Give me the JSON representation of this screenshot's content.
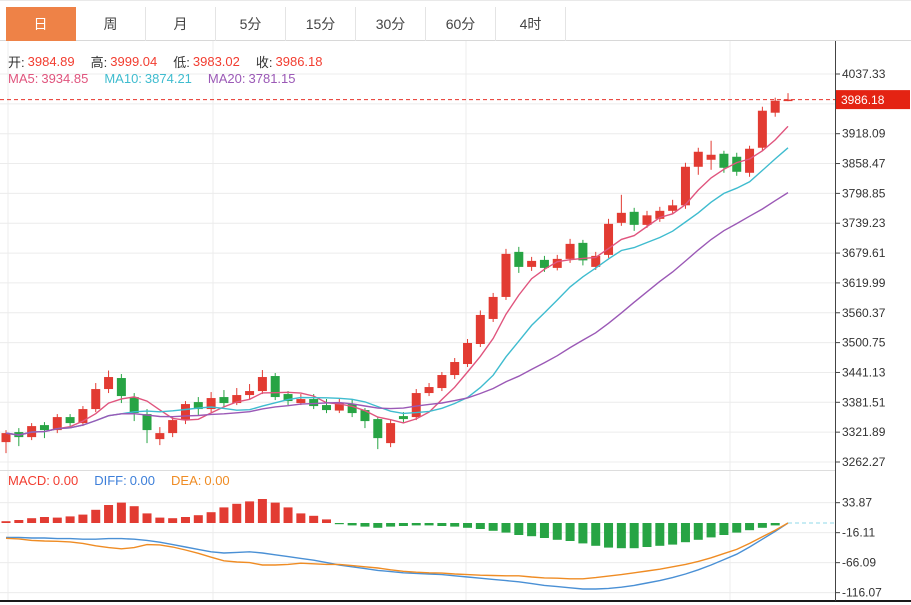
{
  "tabs": [
    {
      "label": "日",
      "active": true
    },
    {
      "label": "周",
      "active": false
    },
    {
      "label": "月",
      "active": false
    },
    {
      "label": "5分",
      "active": false
    },
    {
      "label": "15分",
      "active": false
    },
    {
      "label": "30分",
      "active": false
    },
    {
      "label": "60分",
      "active": false
    },
    {
      "label": "4时",
      "active": false
    }
  ],
  "ohlc_bar": {
    "open_label": "开:",
    "open_value": "3984.89",
    "high_label": "高:",
    "high_value": "3999.04",
    "low_label": "低:",
    "low_value": "3983.02",
    "close_label": "收:",
    "close_value": "3986.18"
  },
  "ma_bar": {
    "ma5_label": "MA5:",
    "ma5_value": "3934.85",
    "ma10_label": "MA10:",
    "ma10_value": "3874.21",
    "ma20_label": "MA20:",
    "ma20_value": "3781.15"
  },
  "macd_bar": {
    "macd_label": "MACD:",
    "macd_value": "0.00",
    "diff_label": "DIFF:",
    "diff_value": "0.00",
    "dea_label": "DEA:",
    "dea_value": "0.00"
  },
  "colors": {
    "accent_tab": "#ee8247",
    "up": "#e23b32",
    "down": "#27a444",
    "ma5": "#e0557e",
    "ma10": "#3fbccf",
    "ma20": "#9b59b6",
    "diff_line": "#4a90d5",
    "dea_line": "#ef8c24",
    "price_line": "#e8332a",
    "badge_bg": "#e42313",
    "grid": "#ececec",
    "axis_line": "#444",
    "axis_text": "#333",
    "zero_dash": "#8fd8e8"
  },
  "chart_data": [
    {
      "type": "candlestick",
      "title": "",
      "xlabel": "",
      "ylabel": "price",
      "ylim": [
        3246,
        4054
      ],
      "grid": true,
      "legend_position": "top-left",
      "y_ticks": [
        4037.33,
        3918.09,
        3858.47,
        3798.85,
        3739.23,
        3679.61,
        3619.99,
        3560.37,
        3500.75,
        3441.13,
        3381.51,
        3321.89,
        3262.27
      ],
      "hidden_grid_tick": 3977.71,
      "current_price": 3986.18,
      "current_price_label": "3986.18",
      "overlays": [
        {
          "name": "MA5",
          "period": 5,
          "color": "#e0557e"
        },
        {
          "name": "MA10",
          "period": 10,
          "color": "#3fbccf"
        },
        {
          "name": "MA20",
          "period": 20,
          "color": "#9b59b6"
        }
      ],
      "ohlc": [
        [
          3302,
          3326,
          3280,
          3320
        ],
        [
          3322,
          3330,
          3294,
          3312
        ],
        [
          3312,
          3340,
          3306,
          3334
        ],
        [
          3336,
          3342,
          3310,
          3326
        ],
        [
          3326,
          3358,
          3320,
          3352
        ],
        [
          3352,
          3358,
          3332,
          3340
        ],
        [
          3340,
          3374,
          3334,
          3368
        ],
        [
          3368,
          3420,
          3362,
          3408
        ],
        [
          3408,
          3445,
          3400,
          3432
        ],
        [
          3430,
          3438,
          3380,
          3394
        ],
        [
          3392,
          3400,
          3344,
          3360
        ],
        [
          3358,
          3368,
          3300,
          3326
        ],
        [
          3308,
          3332,
          3296,
          3320
        ],
        [
          3320,
          3352,
          3312,
          3346
        ],
        [
          3346,
          3384,
          3338,
          3378
        ],
        [
          3382,
          3392,
          3356,
          3368
        ],
        [
          3368,
          3402,
          3362,
          3390
        ],
        [
          3392,
          3406,
          3372,
          3380
        ],
        [
          3380,
          3410,
          3376,
          3396
        ],
        [
          3396,
          3418,
          3388,
          3404
        ],
        [
          3404,
          3446,
          3398,
          3432
        ],
        [
          3434,
          3440,
          3386,
          3392
        ],
        [
          3398,
          3404,
          3376,
          3384
        ],
        [
          3380,
          3398,
          3376,
          3388
        ],
        [
          3388,
          3398,
          3368,
          3374
        ],
        [
          3376,
          3388,
          3360,
          3366
        ],
        [
          3365,
          3390,
          3360,
          3380
        ],
        [
          3378,
          3388,
          3352,
          3360
        ],
        [
          3366,
          3370,
          3330,
          3344
        ],
        [
          3348,
          3352,
          3288,
          3310
        ],
        [
          3300,
          3348,
          3292,
          3340
        ],
        [
          3354,
          3362,
          3340,
          3348
        ],
        [
          3352,
          3408,
          3346,
          3400
        ],
        [
          3400,
          3420,
          3394,
          3412
        ],
        [
          3410,
          3442,
          3404,
          3436
        ],
        [
          3436,
          3470,
          3428,
          3462
        ],
        [
          3458,
          3508,
          3452,
          3500
        ],
        [
          3498,
          3565,
          3492,
          3556
        ],
        [
          3548,
          3600,
          3542,
          3592
        ],
        [
          3592,
          3688,
          3586,
          3678
        ],
        [
          3682,
          3692,
          3640,
          3652
        ],
        [
          3652,
          3672,
          3644,
          3664
        ],
        [
          3666,
          3674,
          3642,
          3650
        ],
        [
          3650,
          3676,
          3645,
          3668
        ],
        [
          3668,
          3708,
          3660,
          3698
        ],
        [
          3700,
          3706,
          3655,
          3665
        ],
        [
          3652,
          3682,
          3646,
          3674
        ],
        [
          3676,
          3748,
          3670,
          3738
        ],
        [
          3740,
          3796,
          3734,
          3760
        ],
        [
          3762,
          3770,
          3724,
          3736
        ],
        [
          3736,
          3764,
          3730,
          3755
        ],
        [
          3748,
          3772,
          3742,
          3764
        ],
        [
          3764,
          3786,
          3758,
          3775
        ],
        [
          3775,
          3860,
          3768,
          3852
        ],
        [
          3852,
          3890,
          3836,
          3882
        ],
        [
          3866,
          3904,
          3846,
          3876
        ],
        [
          3878,
          3884,
          3840,
          3850
        ],
        [
          3872,
          3880,
          3834,
          3842
        ],
        [
          3840,
          3894,
          3832,
          3888
        ],
        [
          3890,
          3972,
          3884,
          3964
        ],
        [
          3960,
          3990,
          3952,
          3984
        ],
        [
          3984.89,
          3999.04,
          3983.02,
          3986.18
        ]
      ]
    },
    {
      "type": "bar",
      "title": "MACD",
      "grid": true,
      "y_ticks": [
        33.87,
        -16.11,
        -66.09,
        -116.07
      ],
      "series": [
        {
          "name": "MACD",
          "type": "bar",
          "values": [
            3,
            5,
            8,
            10,
            9,
            11,
            14,
            22,
            30,
            34,
            28,
            16,
            9,
            8,
            10,
            13,
            18,
            26,
            32,
            36,
            40,
            34,
            26,
            16,
            12,
            6,
            -2,
            -4,
            -6,
            -8,
            -6,
            -5,
            -4,
            -4,
            -5,
            -6,
            -8,
            -10,
            -13,
            -16,
            -20,
            -22,
            -25,
            -28,
            -30,
            -34,
            -38,
            -41,
            -42,
            -42,
            -40,
            -38,
            -36,
            -32,
            -28,
            -24,
            -20,
            -16,
            -12,
            -8,
            -4,
            0
          ]
        },
        {
          "name": "DIFF",
          "type": "line",
          "color": "#4a90d5",
          "values": [
            -24,
            -24,
            -25,
            -25,
            -26,
            -26,
            -27,
            -27,
            -26,
            -26,
            -27,
            -29,
            -32,
            -36,
            -40,
            -44,
            -48,
            -50,
            -49,
            -48,
            -50,
            -53,
            -56,
            -59,
            -62,
            -66,
            -70,
            -73,
            -76,
            -79,
            -81,
            -83,
            -84,
            -85,
            -86,
            -88,
            -90,
            -92,
            -94,
            -96,
            -98,
            -101,
            -104,
            -106,
            -108,
            -110,
            -110,
            -109,
            -107,
            -104,
            -100,
            -96,
            -91,
            -85,
            -78,
            -70,
            -61,
            -52,
            -40,
            -27,
            -14,
            0
          ]
        },
        {
          "name": "DEA",
          "type": "line",
          "color": "#ef8c24",
          "values": [
            -25.5,
            -26.5,
            -29,
            -30,
            -30.5,
            -31.5,
            -34,
            -38,
            -41,
            -43,
            -41,
            -36,
            -36.5,
            -40,
            -45,
            -50.5,
            -57,
            -63,
            -65,
            -66,
            -70,
            -70,
            -69,
            -67,
            -68,
            -69,
            -69,
            -71,
            -73,
            -75,
            -78,
            -80.5,
            -82,
            -83,
            -83.5,
            -85,
            -86,
            -87,
            -87.5,
            -88,
            -88,
            -90,
            -91.5,
            -92,
            -93,
            -93,
            -91,
            -88.5,
            -86,
            -83,
            -80,
            -77,
            -73,
            -69,
            -64,
            -58,
            -51,
            -44,
            -34,
            -23,
            -12,
            0
          ]
        }
      ]
    }
  ]
}
